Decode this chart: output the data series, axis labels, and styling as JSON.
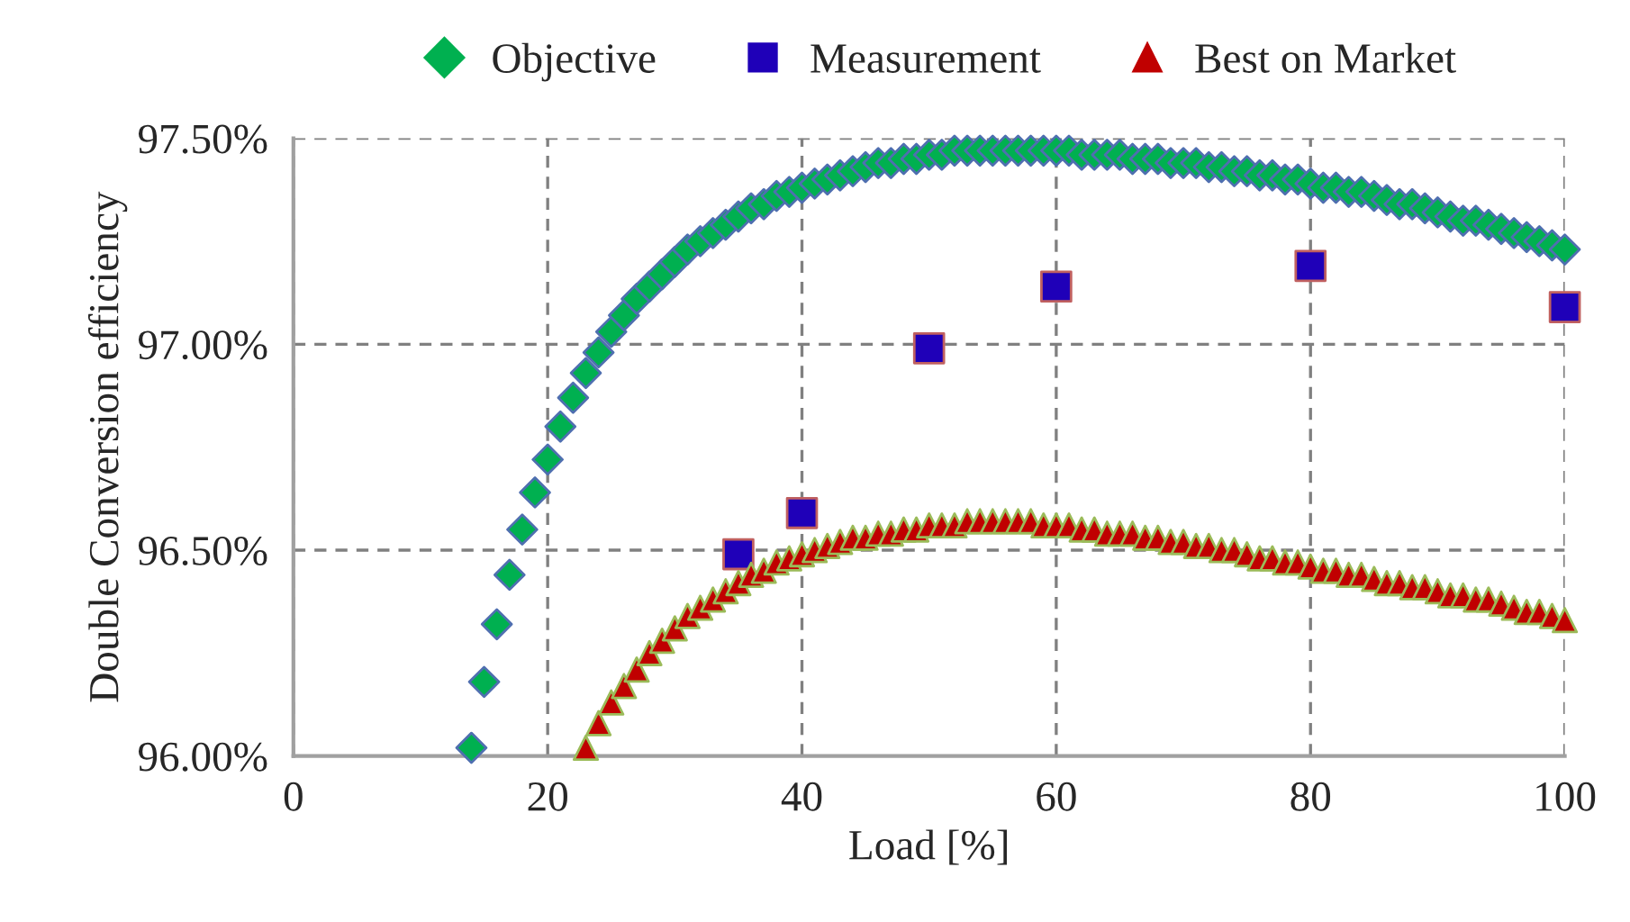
{
  "chart_data": {
    "type": "scatter",
    "xlabel": "Load [%]",
    "ylabel": "Double Conversion efficiency",
    "xlim": [
      0,
      100
    ],
    "xticks": [
      0,
      20,
      40,
      60,
      80,
      100
    ],
    "ylim": [
      96.0,
      97.5
    ],
    "yticks": [
      {
        "value": 96.0,
        "label": "96.00%"
      },
      {
        "value": 96.5,
        "label": "96.50%"
      },
      {
        "value": 97.0,
        "label": "97.00%"
      },
      {
        "value": 97.5,
        "label": "97.50%"
      }
    ],
    "grid": true,
    "legend": "top",
    "series": [
      {
        "name": "Objective",
        "color": "#00b050",
        "marker": "diamond",
        "x": [
          14,
          15,
          16,
          17,
          18,
          19,
          20,
          21,
          22,
          23,
          24,
          25,
          26,
          27,
          28,
          29,
          30,
          31,
          32,
          33,
          34,
          35,
          36,
          37,
          38,
          39,
          40,
          41,
          42,
          43,
          44,
          45,
          46,
          47,
          48,
          49,
          50,
          51,
          52,
          53,
          54,
          55,
          56,
          57,
          58,
          59,
          60,
          61,
          62,
          63,
          64,
          65,
          66,
          67,
          68,
          69,
          70,
          71,
          72,
          73,
          74,
          75,
          76,
          77,
          78,
          79,
          80,
          81,
          82,
          83,
          84,
          85,
          86,
          87,
          88,
          89,
          90,
          91,
          92,
          93,
          94,
          95,
          96,
          97,
          98,
          99,
          100
        ],
        "values": [
          96.02,
          96.18,
          96.32,
          96.44,
          96.55,
          96.64,
          96.72,
          96.8,
          96.87,
          96.93,
          96.98,
          97.03,
          97.07,
          97.11,
          97.14,
          97.17,
          97.2,
          97.23,
          97.25,
          97.27,
          97.29,
          97.31,
          97.33,
          97.34,
          97.36,
          97.37,
          97.38,
          97.39,
          97.4,
          97.41,
          97.42,
          97.43,
          97.44,
          97.44,
          97.45,
          97.45,
          97.46,
          97.46,
          97.47,
          97.47,
          97.47,
          97.47,
          97.47,
          97.47,
          97.47,
          97.47,
          97.47,
          97.47,
          97.46,
          97.46,
          97.46,
          97.46,
          97.45,
          97.45,
          97.45,
          97.44,
          97.44,
          97.44,
          97.43,
          97.43,
          97.42,
          97.42,
          97.41,
          97.41,
          97.4,
          97.4,
          97.39,
          97.38,
          97.38,
          97.37,
          97.37,
          97.36,
          97.35,
          97.34,
          97.34,
          97.33,
          97.32,
          97.31,
          97.3,
          97.3,
          97.29,
          97.28,
          97.27,
          97.26,
          97.25,
          97.24,
          97.23
        ]
      },
      {
        "name": "Measurement",
        "color": "#1f00b8",
        "marker": "square",
        "x": [
          35,
          40,
          50,
          60,
          80,
          100
        ],
        "values": [
          96.49,
          96.59,
          96.99,
          97.14,
          97.19,
          97.09
        ]
      },
      {
        "name": "Best on Market",
        "color": "#c00000",
        "marker": "triangle",
        "x": [
          23,
          24,
          25,
          26,
          27,
          28,
          29,
          30,
          31,
          32,
          33,
          34,
          35,
          36,
          37,
          38,
          39,
          40,
          41,
          42,
          43,
          44,
          45,
          46,
          47,
          48,
          49,
          50,
          51,
          52,
          53,
          54,
          55,
          56,
          57,
          58,
          59,
          60,
          61,
          62,
          63,
          64,
          65,
          66,
          67,
          68,
          69,
          70,
          71,
          72,
          73,
          74,
          75,
          76,
          77,
          78,
          79,
          80,
          81,
          82,
          83,
          84,
          85,
          86,
          87,
          88,
          89,
          90,
          91,
          92,
          93,
          94,
          95,
          96,
          97,
          98,
          99,
          100
        ],
        "values": [
          96.02,
          96.08,
          96.13,
          96.17,
          96.21,
          96.25,
          96.28,
          96.31,
          96.34,
          96.36,
          96.38,
          96.4,
          96.42,
          96.44,
          96.45,
          96.47,
          96.48,
          96.49,
          96.5,
          96.51,
          96.52,
          96.53,
          96.53,
          96.54,
          96.54,
          96.55,
          96.55,
          96.56,
          96.56,
          96.56,
          96.57,
          96.57,
          96.57,
          96.57,
          96.57,
          96.57,
          96.56,
          96.56,
          96.56,
          96.55,
          96.55,
          96.54,
          96.54,
          96.54,
          96.53,
          96.53,
          96.52,
          96.52,
          96.51,
          96.51,
          96.5,
          96.5,
          96.49,
          96.48,
          96.48,
          96.47,
          96.47,
          96.46,
          96.45,
          96.45,
          96.44,
          96.44,
          96.43,
          96.42,
          96.42,
          96.41,
          96.41,
          96.4,
          96.39,
          96.39,
          96.38,
          96.38,
          96.37,
          96.36,
          96.35,
          96.35,
          96.34,
          96.33
        ]
      }
    ]
  }
}
